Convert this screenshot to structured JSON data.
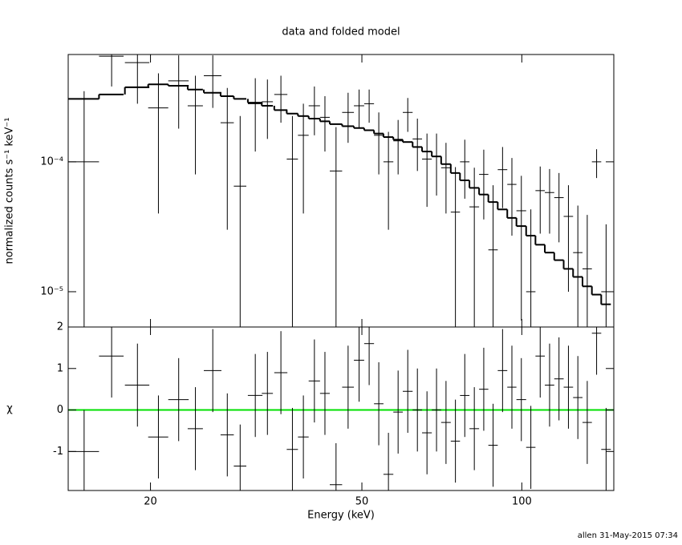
{
  "chart_data": [
    {
      "type": "errorbar",
      "title": "data and folded model",
      "y_label": "normalized counts s⁻¹ keV⁻¹",
      "log_y": true,
      "xlim": [
        14,
        149
      ],
      "ylim": [
        5.35e-06,
        0.00067
      ],
      "yticks": [
        {
          "value": 0.0001,
          "label": "10⁻⁴"
        },
        {
          "value": 1e-05,
          "label": "10⁻⁵"
        }
      ],
      "x": [
        15.0,
        16.9,
        18.9,
        20.7,
        22.6,
        24.3,
        26.2,
        27.9,
        29.5,
        31.5,
        33.2,
        35.2,
        37.0,
        38.8,
        40.7,
        42.6,
        44.7,
        47.1,
        49.4,
        51.6,
        53.8,
        56.1,
        58.5,
        61.0,
        63.6,
        66.3,
        69.1,
        72.0,
        75.0,
        78.1,
        81.4,
        84.8,
        88.3,
        92.0,
        95.8,
        99.8,
        104.0,
        108.3,
        112.8,
        117.5,
        122.4,
        127.5,
        132.8,
        138.3,
        144.1
      ],
      "xerr": [
        1.0,
        0.9,
        1.0,
        0.9,
        1.0,
        0.8,
        1.0,
        0.8,
        0.8,
        1.0,
        0.8,
        1.0,
        0.9,
        0.9,
        1.0,
        0.9,
        1.2,
        1.2,
        1.1,
        1.1,
        1.1,
        1.2,
        1.2,
        1.3,
        1.3,
        1.4,
        1.4,
        1.5,
        1.5,
        1.6,
        1.7,
        1.7,
        1.8,
        1.9,
        1.9,
        2.1,
        2.1,
        2.2,
        2.3,
        2.4,
        2.5,
        2.6,
        2.7,
        2.8,
        3.0
      ],
      "values": [
        0.0001,
        0.00065,
        0.00058,
        0.00026,
        0.00042,
        0.00027,
        0.00046,
        0.0002,
        6.5e-05,
        0.00028,
        0.00029,
        0.00033,
        0.000105,
        0.00016,
        0.00027,
        0.00022,
        8.5e-05,
        0.00024,
        0.00027,
        0.00028,
        0.00016,
        0.0001,
        0.000145,
        0.00024,
        0.00015,
        0.000105,
        0.00011,
        9e-05,
        4.1e-05,
        0.0001,
        4.5e-05,
        8e-05,
        2.1e-05,
        8.7e-05,
        6.7e-05,
        4.2e-05,
        1e-05,
        6e-05,
        5.8e-05,
        5.3e-05,
        3.8e-05,
        2e-05,
        1.5e-05,
        0.0001,
        1e-05
      ],
      "errors": [
        0.00025,
        0.00027,
        0.0003,
        0.00022,
        0.00024,
        0.00019,
        0.0002,
        0.00017,
        0.00016,
        0.00016,
        0.00014,
        0.00013,
        0.00012,
        0.00012,
        0.00011,
        0.0001,
        0.0001,
        0.0001,
        9e-05,
        8e-05,
        8e-05,
        7e-05,
        6.5e-05,
        7e-05,
        6.5e-05,
        6e-05,
        5.5e-05,
        5e-05,
        5e-05,
        4.8e-05,
        4.5e-05,
        4.4e-05,
        4.5e-05,
        4.3e-05,
        4e-05,
        3.6e-05,
        3.3e-05,
        3.2e-05,
        3e-05,
        2.9e-05,
        2.8e-05,
        2.6e-05,
        2.4e-05,
        2.5e-05,
        2.3e-05
      ],
      "color": "#000000",
      "model": [
        0.000305,
        0.00033,
        0.000375,
        0.000395,
        0.000385,
        0.00036,
        0.00034,
        0.00032,
        0.000305,
        0.000285,
        0.00027,
        0.00025,
        0.000235,
        0.000225,
        0.000215,
        0.000205,
        0.000195,
        0.000188,
        0.000182,
        0.000175,
        0.000165,
        0.000155,
        0.000148,
        0.000142,
        0.00013,
        0.00012,
        0.00011,
        9.6e-05,
        8.2e-05,
        7.2e-05,
        6.3e-05,
        5.6e-05,
        4.9e-05,
        4.3e-05,
        3.7e-05,
        3.2e-05,
        2.7e-05,
        2.3e-05,
        2e-05,
        1.75e-05,
        1.5e-05,
        1.3e-05,
        1.1e-05,
        9.5e-06,
        8e-06
      ],
      "model_color": "#000000"
    },
    {
      "type": "residual",
      "x_label": "Energy (keV)",
      "y_label": "χ",
      "xlim": [
        14,
        149
      ],
      "xticks": [
        20,
        50,
        100
      ],
      "ylim": [
        -1.94,
        2
      ],
      "yticks": [
        -1,
        0,
        1,
        2
      ],
      "values": [
        -1.0,
        1.3,
        0.6,
        -0.65,
        0.25,
        -0.45,
        0.95,
        -0.6,
        -1.35,
        0.35,
        0.4,
        0.9,
        -0.95,
        -0.65,
        0.7,
        0.4,
        -1.8,
        0.55,
        1.2,
        1.6,
        0.15,
        -1.55,
        -0.05,
        0.45,
        0.0,
        -0.55,
        0.0,
        -0.3,
        -0.75,
        0.35,
        -0.45,
        0.5,
        -0.85,
        0.95,
        0.55,
        0.25,
        -0.9,
        1.3,
        0.6,
        0.75,
        0.55,
        0.3,
        -0.3,
        1.85,
        -0.95
      ],
      "errors": [
        1,
        1,
        1,
        1,
        1,
        1,
        1,
        1,
        1,
        1,
        1,
        1,
        1,
        1,
        1,
        1,
        1,
        1,
        1,
        1,
        1,
        1,
        1,
        1,
        1,
        1,
        1,
        1,
        1,
        1,
        1,
        1,
        1,
        1,
        1,
        1,
        1,
        1,
        1,
        1,
        1,
        1,
        1,
        1,
        1
      ],
      "color": "#000000",
      "zero_line_color": "#00e000"
    }
  ],
  "footer": "allen 31-May-2015 07:34"
}
